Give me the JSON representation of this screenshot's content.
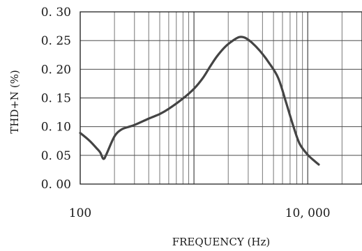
{
  "chart_data": {
    "type": "line",
    "title": "",
    "xlabel": "FREQUENCY (Hz)",
    "ylabel": "THD+N (%)",
    "x_scale": "log",
    "xlim": [
      100,
      30000
    ],
    "ylim": [
      0,
      0.3
    ],
    "grid": true,
    "x_ticks": [
      {
        "value": 100,
        "label": "100"
      },
      {
        "value": 10000,
        "label": "10, 000"
      }
    ],
    "y_ticks": [
      {
        "value": 0,
        "label": "0. 00"
      },
      {
        "value": 0.05,
        "label": "0. 05"
      },
      {
        "value": 0.1,
        "label": "0. 10"
      },
      {
        "value": 0.15,
        "label": "0. 15"
      },
      {
        "value": 0.2,
        "label": "0. 20"
      },
      {
        "value": 0.25,
        "label": "0. 25"
      },
      {
        "value": 0.3,
        "label": "0. 30"
      }
    ],
    "series": [
      {
        "color": "#444444",
        "points": [
          [
            100,
            0.089
          ],
          [
            120,
            0.076
          ],
          [
            140,
            0.062
          ],
          [
            150,
            0.055
          ],
          [
            160,
            0.044
          ],
          [
            170,
            0.052
          ],
          [
            200,
            0.083
          ],
          [
            230,
            0.095
          ],
          [
            270,
            0.1
          ],
          [
            300,
            0.103
          ],
          [
            400,
            0.114
          ],
          [
            500,
            0.122
          ],
          [
            600,
            0.131
          ],
          [
            800,
            0.149
          ],
          [
            1000,
            0.166
          ],
          [
            1200,
            0.185
          ],
          [
            1400,
            0.206
          ],
          [
            1600,
            0.223
          ],
          [
            1900,
            0.24
          ],
          [
            2200,
            0.25
          ],
          [
            2500,
            0.256
          ],
          [
            2800,
            0.255
          ],
          [
            3200,
            0.247
          ],
          [
            3800,
            0.232
          ],
          [
            4500,
            0.213
          ],
          [
            5500,
            0.185
          ],
          [
            6500,
            0.14
          ],
          [
            7500,
            0.1
          ],
          [
            8500,
            0.07
          ],
          [
            10000,
            0.051
          ],
          [
            11500,
            0.04
          ],
          [
            12500,
            0.034
          ]
        ]
      }
    ]
  }
}
